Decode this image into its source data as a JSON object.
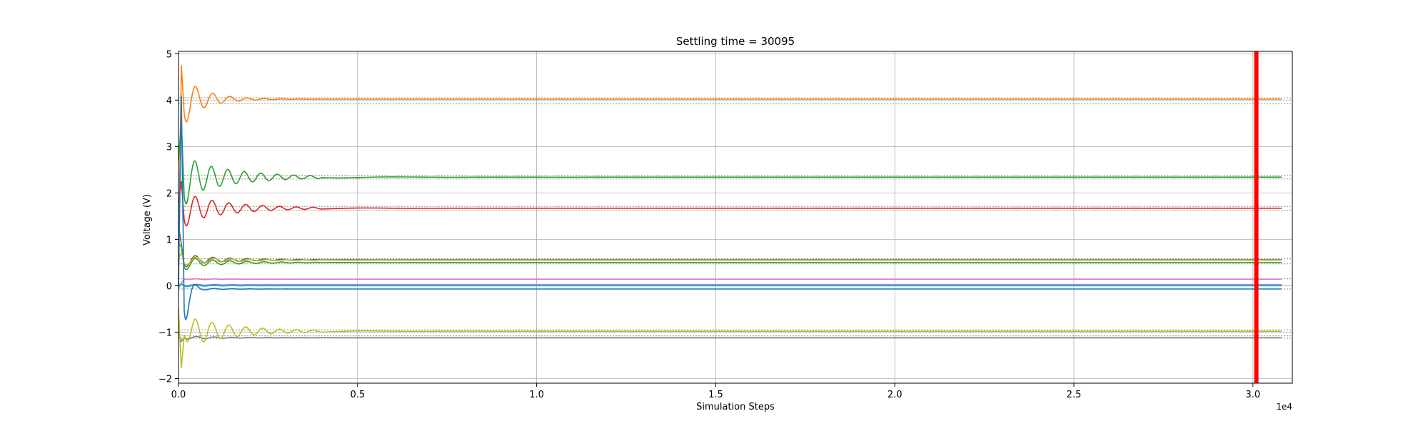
{
  "chart_data": {
    "type": "line",
    "title": "Settling time = 30095",
    "xlabel": "Simulation Steps",
    "ylabel": "Voltage (V)",
    "x_offset_label": "1e4",
    "xlim": [
      0,
      31100
    ],
    "ylim": [
      -2.1,
      5.05
    ],
    "grid": true,
    "legend": "none",
    "x_ticks": [
      {
        "value": 0,
        "label": "0.0"
      },
      {
        "value": 5000,
        "label": "0.5"
      },
      {
        "value": 10000,
        "label": "1.0"
      },
      {
        "value": 15000,
        "label": "1.5"
      },
      {
        "value": 20000,
        "label": "2.0"
      },
      {
        "value": 25000,
        "label": "2.5"
      },
      {
        "value": 30000,
        "label": "3.0"
      }
    ],
    "y_ticks": [
      {
        "value": -2,
        "label": "−2"
      },
      {
        "value": -1,
        "label": "−1"
      },
      {
        "value": 0,
        "label": "0"
      },
      {
        "value": 1,
        "label": "1"
      },
      {
        "value": 2,
        "label": "2"
      },
      {
        "value": 3,
        "label": "3"
      },
      {
        "value": 4,
        "label": "4"
      },
      {
        "value": 5,
        "label": "5"
      }
    ],
    "settling_marker": {
      "x": 30095,
      "color": "#ff0000"
    },
    "reference_color": "#808080",
    "reference_levels": [
      4.05,
      3.93,
      2.38,
      2.3,
      1.71,
      1.63,
      0.58,
      0.47,
      0.15,
      -0.07,
      -0.95,
      -1.08,
      -1.13
    ],
    "series": [
      {
        "color": "#ff7f0e",
        "final": 4.02,
        "start": 0.5,
        "peak": 4.75,
        "amp": 0.55,
        "period": 480,
        "decay": 650
      },
      {
        "color": "#2ca02c",
        "final": 2.34,
        "start": 2.7,
        "peak": 3.55,
        "amp": 0.45,
        "period": 460,
        "decay": 1400
      },
      {
        "color": "#d62728",
        "final": 1.67,
        "start": 1.8,
        "peak": 2.25,
        "amp": 0.35,
        "period": 470,
        "decay": 1300
      },
      {
        "color": "#8c564b",
        "final": 0.56,
        "start": 1.3,
        "peak": 0.9,
        "amp": 0.12,
        "period": 480,
        "decay": 1200
      },
      {
        "color": "#2ca02c",
        "final": 0.5,
        "start": 0.9,
        "peak": 0.85,
        "amp": 0.12,
        "period": 480,
        "decay": 1200
      },
      {
        "color": "#bcbd22",
        "final": 0.55,
        "start": 0.6,
        "peak": 0.7,
        "amp": 0.1,
        "period": 500,
        "decay": 1100
      },
      {
        "color": "#e377c2",
        "final": 0.14,
        "start": 0.0,
        "peak": 0.05,
        "amp": 0.02,
        "period": 500,
        "decay": 800
      },
      {
        "color": "#9467bd",
        "final": 0.02,
        "start": 0.0,
        "peak": 0.04,
        "amp": 0.02,
        "period": 500,
        "decay": 800
      },
      {
        "color": "#17becf",
        "final": 0.0,
        "start": -0.05,
        "peak": 0.05,
        "amp": 0.02,
        "period": 500,
        "decay": 800
      },
      {
        "color": "#1f77b4",
        "final": -0.07,
        "start": 0.0,
        "peak": 4.1,
        "amp": 0.03,
        "period": 500,
        "decay": 800
      },
      {
        "color": "#7f7f7f",
        "final": -1.12,
        "start": -1.0,
        "peak": -1.2,
        "amp": 0.05,
        "period": 500,
        "decay": 900
      },
      {
        "color": "#bcbd22",
        "final": -0.98,
        "start": -0.5,
        "peak": -1.78,
        "amp": 0.4,
        "period": 470,
        "decay": 1300
      }
    ]
  }
}
